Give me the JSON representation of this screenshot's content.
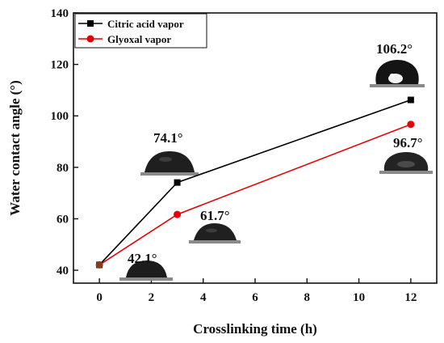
{
  "chart_data": {
    "type": "line",
    "xlabel": "Crosslinking time (h)",
    "ylabel": "Water contact angle (°)",
    "xlim": [
      -1,
      13
    ],
    "ylim": [
      35,
      140
    ],
    "xticks": [
      0,
      2,
      4,
      6,
      8,
      10,
      12
    ],
    "yticks": [
      40,
      60,
      80,
      100,
      120,
      140
    ],
    "grid": false,
    "legend": "top-left",
    "series": [
      {
        "name": "Citric acid vapor",
        "color": "#000000",
        "marker": "square",
        "x": [
          0,
          3,
          12
        ],
        "y": [
          42.1,
          74.1,
          106.2
        ]
      },
      {
        "name": "Glyoxal vapor",
        "color": "#e60000",
        "marker": "circle",
        "x": [
          0,
          3,
          12
        ],
        "y": [
          42.1,
          61.7,
          96.7
        ]
      }
    ],
    "annotations": [
      {
        "text": "42.1°"
      },
      {
        "text": "74.1°"
      },
      {
        "text": "61.7°"
      },
      {
        "text": "106.2°"
      },
      {
        "text": "96.7°"
      }
    ]
  }
}
